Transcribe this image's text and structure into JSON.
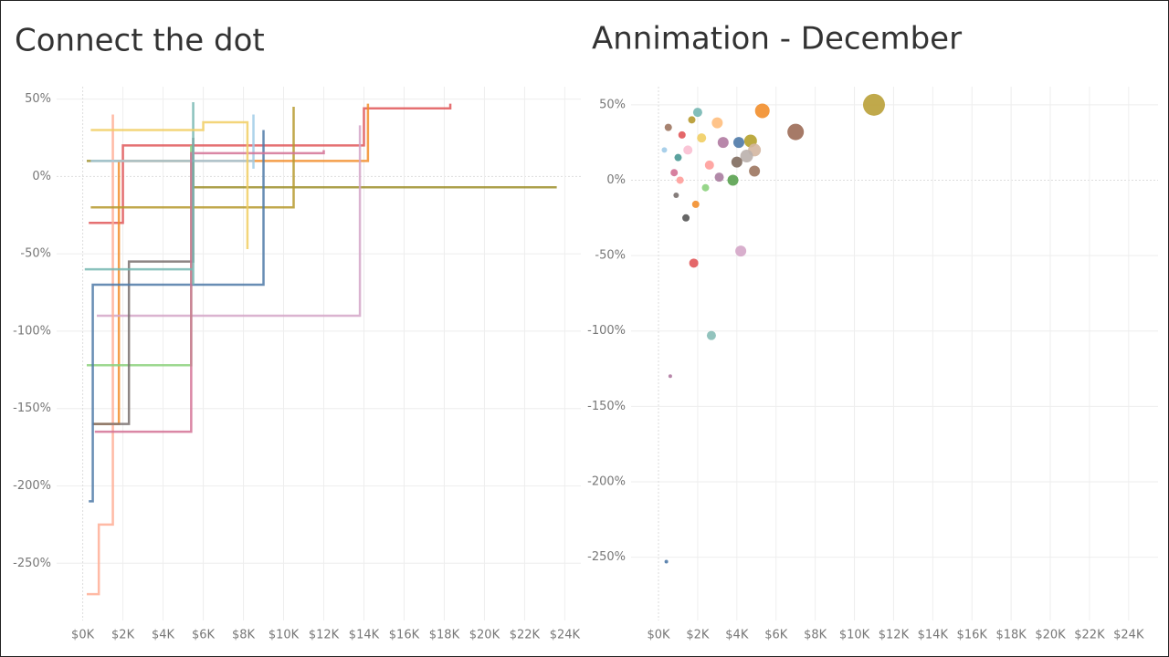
{
  "chart_data": [
    {
      "type": "step-line",
      "title": "Connect the dot",
      "xlim": [
        -1.3,
        24.8
      ],
      "ylim": [
        -287,
        58
      ],
      "xticks": [
        {
          "value": 0,
          "label": "$0K"
        },
        {
          "value": 2,
          "label": "$2K"
        },
        {
          "value": 4,
          "label": "$4K"
        },
        {
          "value": 6,
          "label": "$6K"
        },
        {
          "value": 8,
          "label": "$8K"
        },
        {
          "value": 10,
          "label": "$10K"
        },
        {
          "value": 12,
          "label": "$12K"
        },
        {
          "value": 14,
          "label": "$14K"
        },
        {
          "value": 16,
          "label": "$16K"
        },
        {
          "value": 18,
          "label": "$18K"
        },
        {
          "value": 20,
          "label": "$20K"
        },
        {
          "value": 22,
          "label": "$22K"
        },
        {
          "value": 24,
          "label": "$24K"
        }
      ],
      "yticks": [
        {
          "value": 50,
          "label": "50%"
        },
        {
          "value": 0,
          "label": "0%"
        },
        {
          "value": -50,
          "label": "-50%"
        },
        {
          "value": -100,
          "label": "-100%"
        },
        {
          "value": -150,
          "label": "-150%"
        },
        {
          "value": -200,
          "label": "-200%"
        },
        {
          "value": -250,
          "label": "-250%"
        }
      ],
      "grid": true,
      "series": [
        {
          "color": "#9d8f2b",
          "x": [
            0.2,
            5.5,
            23.6
          ],
          "values": [
            10,
            -7,
            -7
          ]
        },
        {
          "color": "#e15759",
          "x": [
            0.3,
            2,
            14,
            18.3
          ],
          "values": [
            -30,
            20,
            44,
            47
          ]
        },
        {
          "color": "#f28e2b",
          "x": [
            0.5,
            1.8,
            14.2,
            14.2
          ],
          "values": [
            -160,
            10,
            21,
            47
          ]
        },
        {
          "color": "#d4a6c8",
          "x": [
            0.7,
            13.8
          ],
          "values": [
            -90,
            33
          ]
        },
        {
          "color": "#ffae95",
          "x": [
            0.2,
            0.8,
            1.5,
            1.5
          ],
          "values": [
            -270,
            -225,
            -225,
            40
          ]
        },
        {
          "color": "#8cd17d",
          "x": [
            0.2,
            5.4,
            5.4
          ],
          "values": [
            -122,
            -122,
            20
          ]
        },
        {
          "color": "#79706e",
          "x": [
            0.5,
            2.3,
            2.3,
            5.5
          ],
          "values": [
            -160,
            -160,
            -55,
            25
          ]
        },
        {
          "color": "#b6992d",
          "x": [
            0.4,
            10.5,
            10.5
          ],
          "values": [
            -20,
            -20,
            45
          ]
        },
        {
          "color": "#4e79a7",
          "x": [
            0.3,
            0.5,
            4,
            9
          ],
          "values": [
            -210,
            -70,
            -70,
            30
          ]
        },
        {
          "color": "#a0cbe8",
          "x": [
            0.4,
            8.5,
            8.5
          ],
          "values": [
            10,
            5,
            40
          ]
        },
        {
          "color": "#d37295",
          "x": [
            0.6,
            5.4,
            5.4,
            12
          ],
          "values": [
            -165,
            -165,
            15,
            17
          ]
        },
        {
          "color": "#76b7b2",
          "x": [
            0.1,
            5.5,
            5.5
          ],
          "values": [
            -60,
            -70,
            48
          ]
        },
        {
          "color": "#f1ce63",
          "x": [
            0.4,
            6,
            8.2
          ],
          "values": [
            30,
            35,
            -47
          ]
        }
      ]
    },
    {
      "type": "scatter",
      "title": "Annimation - December",
      "xlim": [
        -1.4,
        25.5
      ],
      "ylim": [
        -292,
        62
      ],
      "xticks": [
        {
          "value": 0,
          "label": "$0K"
        },
        {
          "value": 2,
          "label": "$2K"
        },
        {
          "value": 4,
          "label": "$4K"
        },
        {
          "value": 6,
          "label": "$6K"
        },
        {
          "value": 8,
          "label": "$8K"
        },
        {
          "value": 10,
          "label": "$10K"
        },
        {
          "value": 12,
          "label": "$12K"
        },
        {
          "value": 14,
          "label": "$14K"
        },
        {
          "value": 16,
          "label": "$16K"
        },
        {
          "value": 18,
          "label": "$18K"
        },
        {
          "value": 20,
          "label": "$20K"
        },
        {
          "value": 22,
          "label": "$22K"
        },
        {
          "value": 24,
          "label": "$24K"
        }
      ],
      "yticks": [
        {
          "value": 50,
          "label": "50%"
        },
        {
          "value": 0,
          "label": "0%"
        },
        {
          "value": -50,
          "label": "-50%"
        },
        {
          "value": -100,
          "label": "-100%"
        },
        {
          "value": -150,
          "label": "-150%"
        },
        {
          "value": -200,
          "label": "-200%"
        },
        {
          "value": -250,
          "label": "-250%"
        }
      ],
      "grid": true,
      "x": [
        11.0,
        7.0,
        5.3,
        4.7,
        4.9,
        4.1,
        4.5,
        4.0,
        4.9,
        3.8,
        4.2,
        1.8,
        2.7,
        2.0,
        3.0,
        3.3,
        2.6,
        3.1,
        1.4,
        1.9,
        0.4,
        0.6,
        1.7,
        1.2,
        2.2,
        1.0,
        0.8,
        1.5,
        2.4,
        0.5,
        0.3,
        0.9,
        1.1
      ],
      "values": [
        50,
        32,
        46,
        26,
        20,
        25,
        16,
        12,
        6,
        0,
        -47,
        -55,
        -103,
        45,
        38,
        25,
        10,
        2,
        -25,
        -16,
        -253,
        -130,
        40,
        30,
        28,
        15,
        5,
        20,
        -5,
        35,
        20,
        -10,
        0
      ],
      "sizes": [
        12,
        9,
        8,
        7,
        7,
        6,
        7,
        6,
        6,
        6,
        6,
        5,
        5,
        5,
        6,
        6,
        5,
        5,
        4,
        4,
        2,
        2,
        4,
        4,
        5,
        4,
        4,
        5,
        4,
        4,
        3,
        3,
        4
      ],
      "colors": [
        "#b9a037",
        "#9c6b56",
        "#f28e2b",
        "#b5a12c",
        "#d4b6a0",
        "#4e79a7",
        "#bab0ac",
        "#7f6c5e",
        "#9c755f",
        "#59a14f",
        "#d4a6c8",
        "#e15759",
        "#86bcb6",
        "#76b7b2",
        "#ffbe7d",
        "#b07aa1",
        "#ff9d9a",
        "#a87c9f",
        "#555555",
        "#f28e2b",
        "#4e79a7",
        "#b07aa1",
        "#b6992d",
        "#e15759",
        "#f1ce63",
        "#499894",
        "#d37295",
        "#fabfd2",
        "#8cd17d",
        "#9d7660",
        "#a0cbe8",
        "#79706e",
        "#ff9d9a"
      ]
    }
  ]
}
